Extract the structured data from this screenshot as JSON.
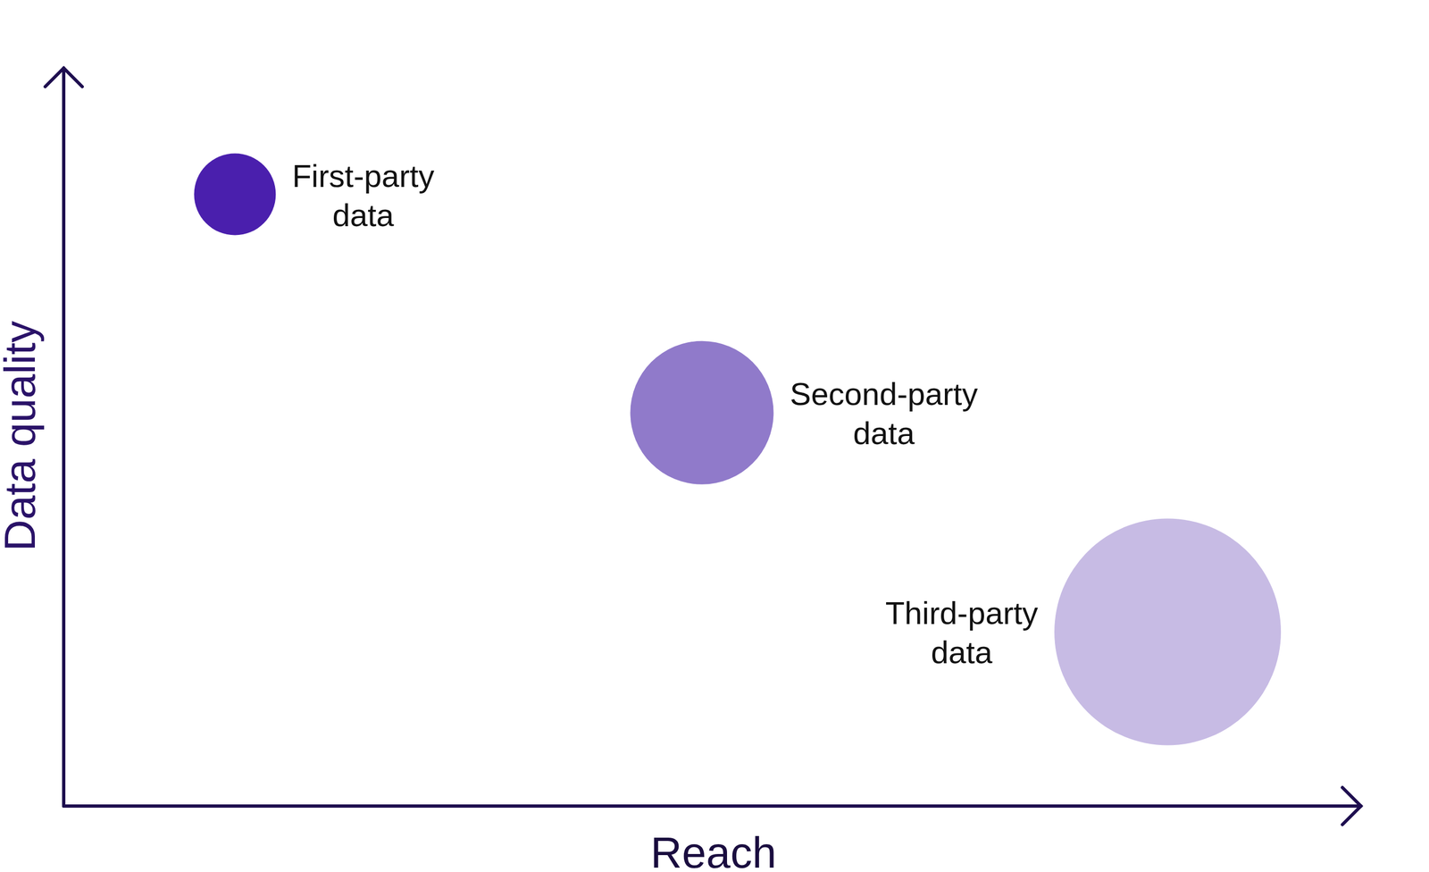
{
  "chart_data": {
    "type": "bubble",
    "x_label": "Reach",
    "y_label": "Data quality",
    "x": [
      13.2,
      49.2,
      85.1
    ],
    "values": [
      82.9,
      53.3,
      23.6
    ],
    "sizes": [
      13,
      40,
      100
    ],
    "labels": [
      "First-party data",
      "Second-party data",
      "Third-party data"
    ],
    "colors": [
      "#4a1fad",
      "#907aca",
      "#c7bbe4"
    ],
    "xlim": [
      0,
      100
    ],
    "ylim": [
      0,
      100
    ],
    "tick_labels": false,
    "grid": false
  }
}
